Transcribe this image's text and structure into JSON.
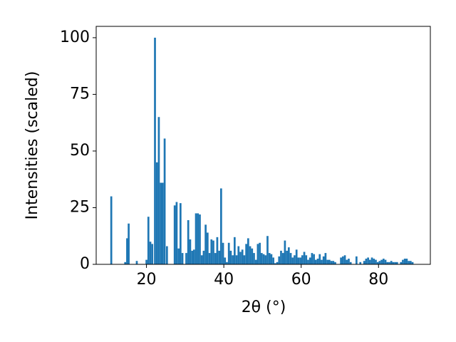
{
  "chart_data": {
    "type": "bar",
    "xlabel": "2θ (°)",
    "ylabel": "Intensities (scaled)",
    "color": "#1f77b4",
    "x": [
      10.9,
      14.5,
      15.0,
      15.4,
      17.5,
      20.0,
      20.5,
      21.0,
      21.5,
      22.2,
      22.7,
      23.2,
      23.7,
      24.2,
      24.7,
      25.3,
      27.3,
      27.8,
      28.3,
      28.8,
      29.3,
      30.3,
      30.8,
      31.3,
      31.8,
      32.3,
      32.8,
      33.3,
      33.8,
      34.3,
      34.8,
      35.3,
      35.8,
      36.3,
      36.8,
      37.3,
      37.8,
      38.3,
      38.8,
      39.3,
      39.8,
      40.3,
      40.8,
      41.3,
      41.8,
      42.3,
      42.8,
      43.3,
      43.8,
      44.3,
      44.8,
      45.3,
      45.8,
      46.3,
      46.8,
      47.3,
      47.8,
      48.3,
      48.8,
      49.3,
      49.8,
      50.3,
      50.8,
      51.3,
      51.8,
      52.3,
      52.8,
      53.3,
      53.8,
      54.3,
      54.8,
      55.3,
      55.8,
      56.3,
      56.8,
      57.3,
      57.8,
      58.3,
      58.8,
      59.3,
      59.8,
      60.3,
      60.8,
      61.3,
      61.8,
      62.3,
      62.8,
      63.3,
      63.8,
      64.3,
      64.8,
      65.3,
      65.8,
      66.3,
      66.8,
      67.3,
      67.8,
      68.3,
      68.8,
      70.3,
      70.8,
      71.3,
      71.8,
      72.3,
      72.8,
      74.3,
      75.3,
      76.3,
      76.8,
      77.3,
      77.8,
      78.3,
      78.8,
      79.3,
      79.8,
      80.3,
      80.8,
      81.3,
      81.8,
      82.3,
      82.8,
      83.3,
      83.8,
      84.3,
      84.8,
      85.8,
      86.3,
      86.8,
      87.3,
      87.8,
      88.3,
      88.8
    ],
    "values": [
      30,
      1,
      11.5,
      18,
      1.5,
      2,
      21,
      10,
      9,
      100,
      45,
      65,
      36,
      36,
      55.5,
      8,
      26,
      27.5,
      7,
      27,
      5,
      5,
      19.5,
      11,
      6,
      6.5,
      22.5,
      22.5,
      22,
      4,
      6,
      17.5,
      14,
      5,
      11,
      10.5,
      5,
      12,
      6,
      33.5,
      9.5,
      3,
      1,
      9.5,
      6,
      4,
      12,
      4,
      8,
      5.5,
      6.5,
      4,
      9,
      11.5,
      8,
      7,
      5,
      2,
      9,
      9.5,
      5,
      4.5,
      4,
      12.5,
      5,
      4.5,
      3,
      0.5,
      1,
      3.5,
      6,
      5,
      10.5,
      6,
      7.5,
      5,
      3,
      4,
      6.5,
      3,
      3,
      4,
      5.5,
      4,
      2,
      3,
      5,
      4.5,
      2,
      2.5,
      4.5,
      2,
      3.5,
      5,
      2,
      2,
      1.5,
      1.5,
      1,
      3,
      3.5,
      4,
      2,
      2.5,
      1,
      3.5,
      1,
      1.5,
      2.5,
      3,
      2,
      3,
      2.5,
      2,
      1,
      1.5,
      2,
      2.5,
      2,
      1,
      1,
      1.5,
      1,
      1,
      1,
      1,
      2,
      2.5,
      2.5,
      1.5,
      1.5,
      1
    ],
    "xlim": [
      7,
      93.4
    ],
    "ylim": [
      0,
      105
    ],
    "xticks": [
      20,
      40,
      60,
      80
    ],
    "yticks": [
      0,
      25,
      50,
      75,
      100
    ]
  }
}
